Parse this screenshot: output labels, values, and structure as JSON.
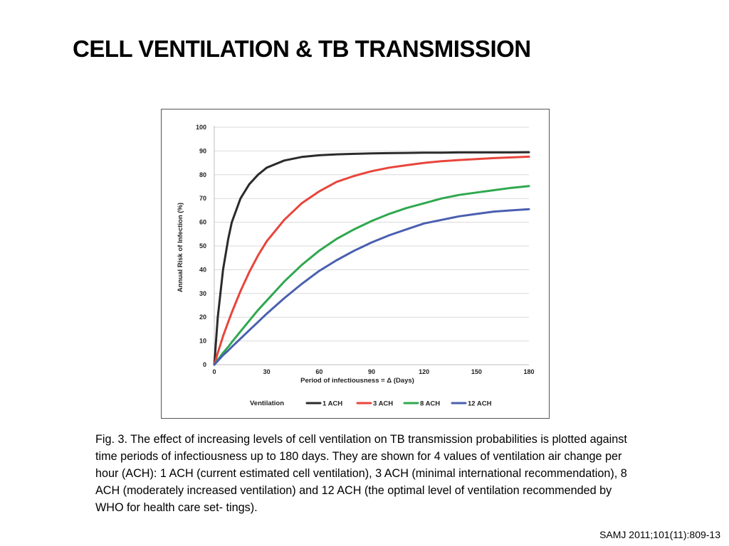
{
  "slide": {
    "title": "CELL VENTILATION & TB TRANSMISSION",
    "caption": "Fig. 3. The effect of increasing levels of cell ventilation on TB transmission probabilities is plotted against time periods of infectiousness up to 180 days. They are shown for 4 values of ventilation air change per hour (ACH): 1 ACH (current estimated cell ventilation), 3 ACH (minimal international recommendation), 8 ACH (moderately increased ventilation) and 12 ACH (the optimal level of ventilation recommended by WHO for health care set- tings).",
    "citation": "SAMJ 2011;101(11):809-13"
  },
  "chart_data": {
    "type": "line",
    "title": "",
    "xlabel": "Period of infectiousness = Δ (Days)",
    "ylabel": "Annual Risk of Infection (%)",
    "xlim": [
      0,
      180
    ],
    "ylim": [
      0,
      100
    ],
    "xticks": [
      "0",
      "30",
      "60",
      "90",
      "120",
      "150",
      "180"
    ],
    "yticks": [
      "0",
      "10",
      "20",
      "30",
      "40",
      "50",
      "60",
      "70",
      "80",
      "90",
      "100"
    ],
    "grid": true,
    "legend_title": "Ventilation",
    "legend_position": "bottom",
    "x": [
      0,
      2,
      5,
      8,
      10,
      15,
      20,
      25,
      30,
      40,
      50,
      60,
      70,
      80,
      90,
      100,
      110,
      120,
      130,
      140,
      150,
      160,
      170,
      180
    ],
    "series": [
      {
        "name": "1 ACH",
        "color": "#2b2b2b",
        "values": [
          0,
          20,
          40,
          53,
          60,
          70,
          76,
          80,
          83,
          86,
          87.5,
          88.2,
          88.6,
          88.8,
          89,
          89.1,
          89.2,
          89.3,
          89.3,
          89.4,
          89.4,
          89.4,
          89.4,
          89.5
        ]
      },
      {
        "name": "3 ACH",
        "color": "#e8453c",
        "values": [
          0,
          5,
          12,
          18,
          22,
          31,
          39,
          46,
          52,
          61,
          68,
          73,
          77,
          79.5,
          81.5,
          83,
          84,
          85,
          85.7,
          86.2,
          86.6,
          87,
          87.3,
          87.6
        ]
      },
      {
        "name": "8 ACH",
        "color": "#2fa84f",
        "values": [
          0,
          2,
          5,
          7.5,
          9.5,
          14,
          18.5,
          23,
          27,
          35,
          42,
          48,
          53,
          57,
          60.5,
          63.5,
          66,
          68,
          70,
          71.5,
          72.5,
          73.5,
          74.5,
          75.2
        ]
      },
      {
        "name": "12 ACH",
        "color": "#4a5fb0",
        "values": [
          0,
          1.6,
          4,
          6,
          7.5,
          11,
          14.5,
          18,
          21.5,
          28,
          34,
          39.5,
          44,
          48,
          51.5,
          54.5,
          57,
          59.5,
          61,
          62.5,
          63.5,
          64.5,
          65,
          65.5
        ]
      }
    ]
  }
}
